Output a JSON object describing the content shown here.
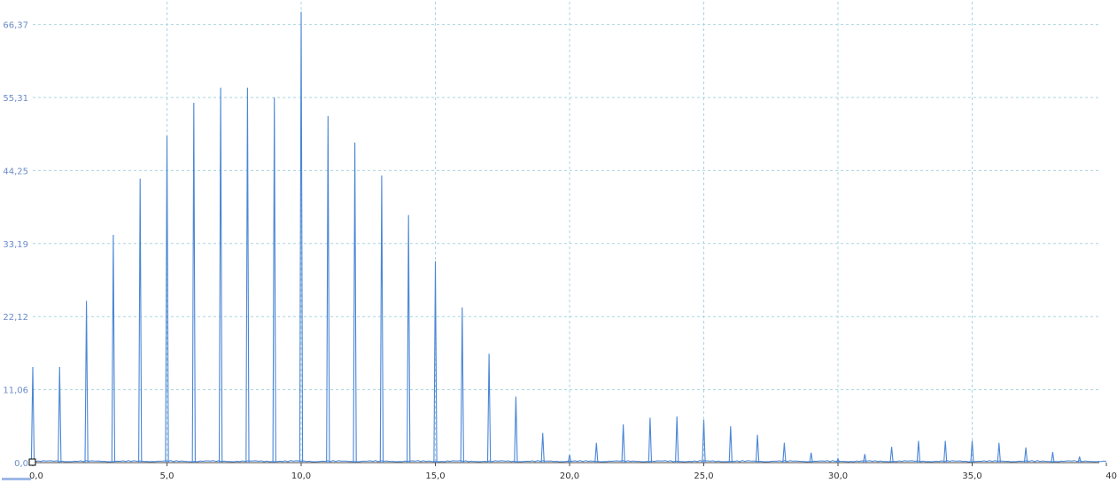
{
  "chart_data": {
    "type": "line",
    "y_ticks": [
      "0,0",
      "11,06",
      "22,12",
      "33,19",
      "44,25",
      "55,31",
      "66,37"
    ],
    "y_tick_values": [
      0,
      11.06,
      22.12,
      33.19,
      44.25,
      55.31,
      66.37
    ],
    "x_ticks": [
      "0,0",
      "5,0",
      "10,0",
      "15,0",
      "20,0",
      "25,0",
      "30,0",
      "35,0",
      "40"
    ],
    "x_tick_values": [
      0,
      5,
      10,
      15,
      20,
      25,
      30,
      35,
      40
    ],
    "xlim": [
      0,
      40
    ],
    "ylim": [
      0,
      69
    ],
    "grid": true,
    "colors": {
      "line": "#4a86d6",
      "grid": "#a9d5df",
      "ytick": "#6a8cc9"
    },
    "series": [
      {
        "x": [
          0,
          1,
          2,
          3,
          4,
          5,
          6,
          7,
          8,
          9,
          10,
          11,
          12,
          13,
          14,
          15,
          16,
          17,
          18,
          19,
          20,
          21,
          22,
          23,
          24,
          25,
          26,
          27,
          28,
          29,
          30,
          31,
          32,
          33,
          34,
          35,
          36,
          37,
          38,
          39
        ],
        "values": [
          14.5,
          14.5,
          24.5,
          34.5,
          43.0,
          49.5,
          54.5,
          56.8,
          56.8,
          55.3,
          68.3,
          52.5,
          48.5,
          43.5,
          37.5,
          30.5,
          23.5,
          16.5,
          10.0,
          4.5,
          1.2,
          3.0,
          5.8,
          6.8,
          7.0,
          6.5,
          5.5,
          4.2,
          3.0,
          1.5,
          0.6,
          1.3,
          2.4,
          3.3,
          3.3,
          3.3,
          3.0,
          2.3,
          1.6,
          0.9
        ]
      }
    ]
  }
}
